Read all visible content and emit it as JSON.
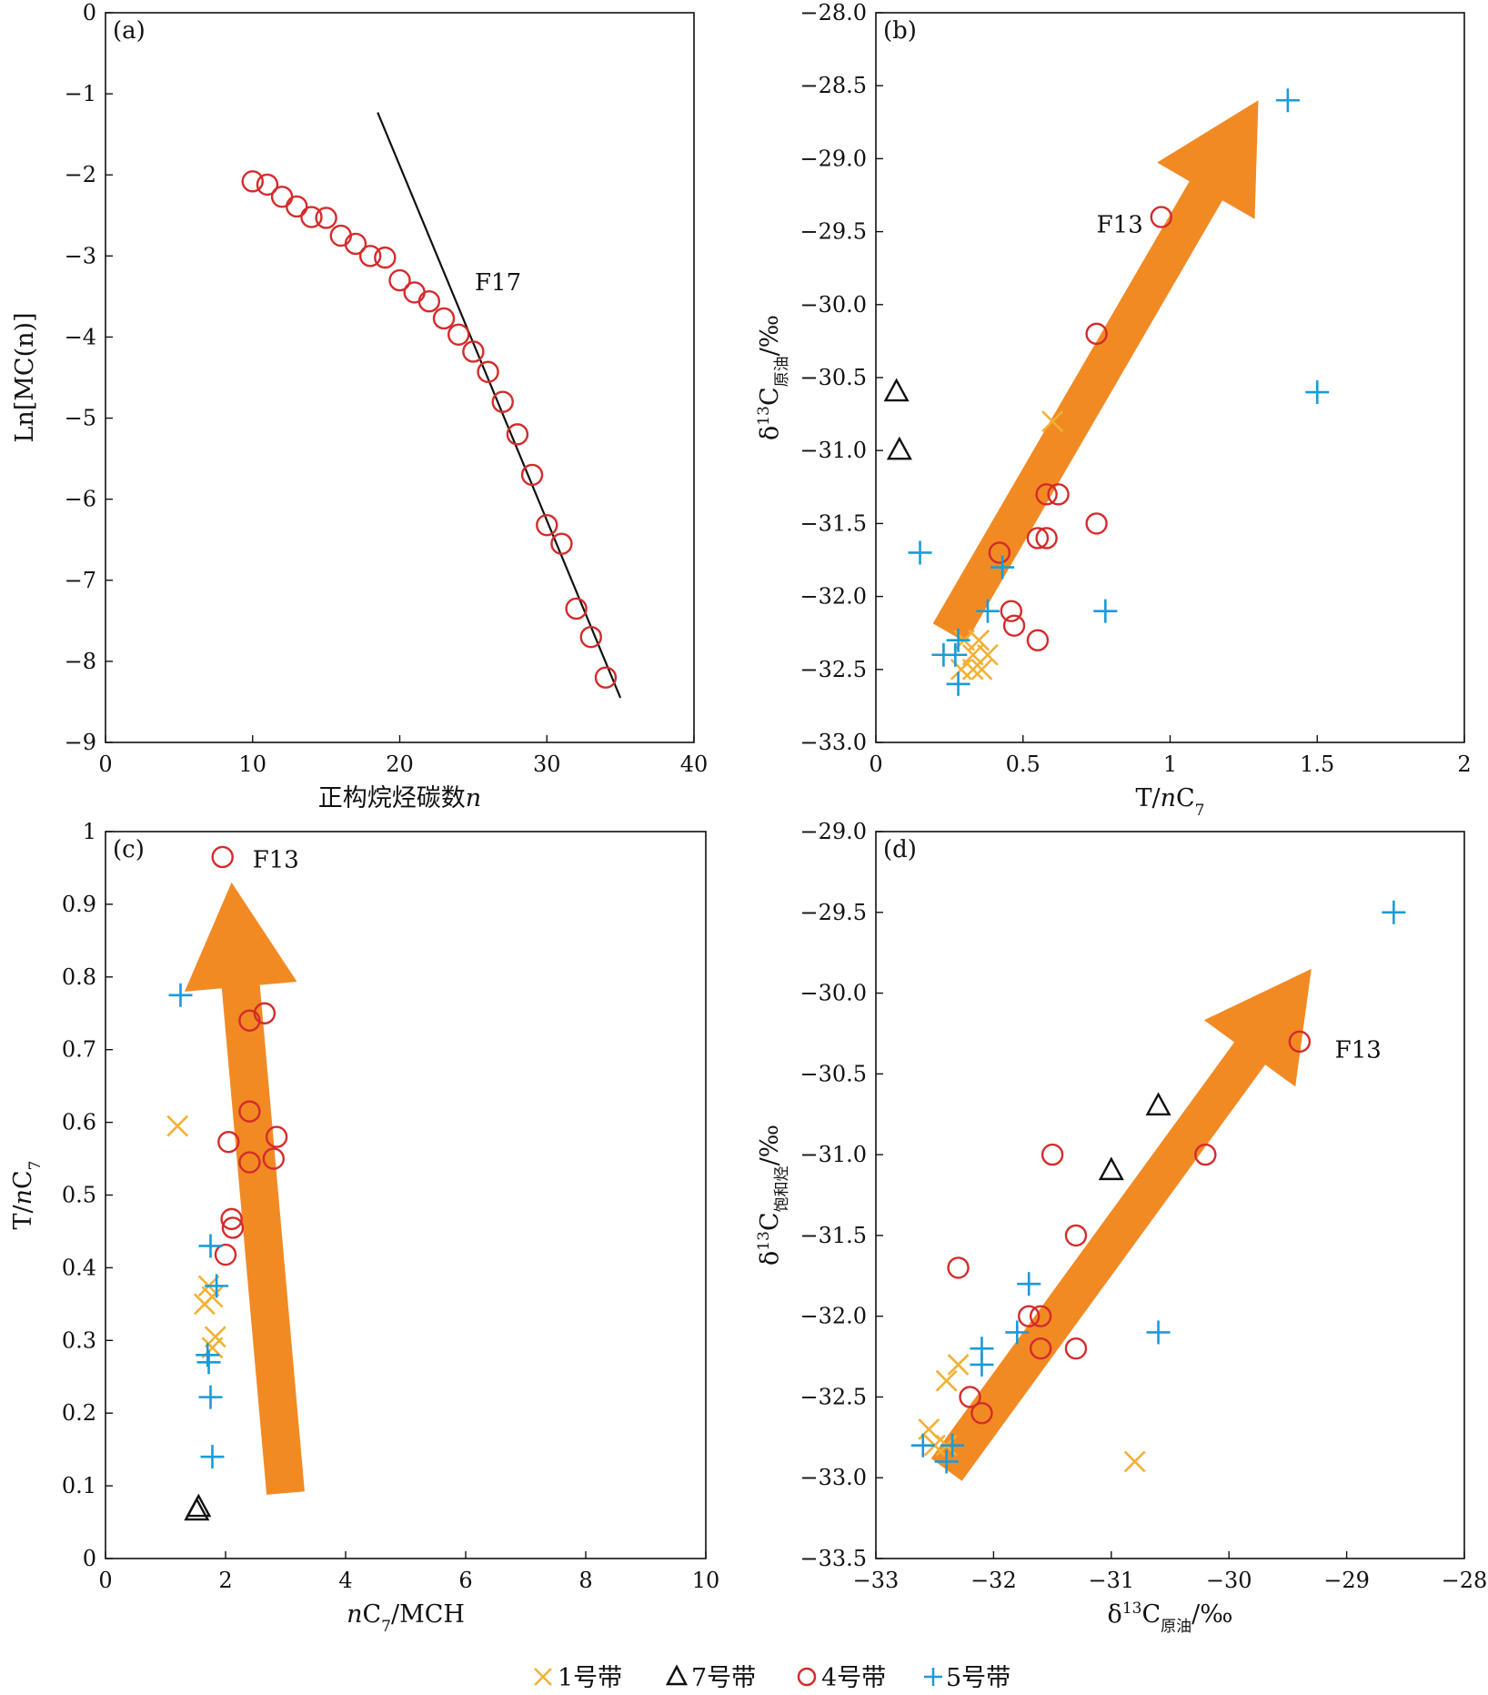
{
  "legend": {
    "items": [
      {
        "key": "zone1",
        "label": "1号带"
      },
      {
        "key": "zone7",
        "label": "7号带"
      },
      {
        "key": "zone4",
        "label": "4号带"
      },
      {
        "key": "zone5",
        "label": "5号带"
      }
    ]
  },
  "colors": {
    "zone1": "#f2b134",
    "zone7": "#111111",
    "zone4": "#d42b2b",
    "zone5": "#1a9bd7",
    "arrow": "#f28a24",
    "line": "#111111"
  },
  "chart_data": [
    {
      "id": "a",
      "type": "scatter",
      "panel_label": "(a)",
      "xlabel_parts": [
        {
          "t": "正构烷烃碳数",
          "style": "normal"
        },
        {
          "t": "n",
          "style": "italic"
        }
      ],
      "ylabel_parts": [
        {
          "t": "Ln[MC(n)]",
          "style": "normal"
        }
      ],
      "xlim": [
        0,
        40
      ],
      "ylim": [
        -9,
        0
      ],
      "xticks": [
        0,
        10,
        20,
        30,
        40
      ],
      "yticks": [
        0,
        -1,
        -2,
        -3,
        -4,
        -5,
        -6,
        -7,
        -8,
        -9
      ],
      "tick_decimals": 0,
      "series": [
        {
          "name": "4号带",
          "marker": "circle",
          "color": "#d42b2b",
          "points": [
            [
              10,
              -2.08
            ],
            [
              11,
              -2.12
            ],
            [
              12,
              -2.27
            ],
            [
              13,
              -2.39
            ],
            [
              14,
              -2.52
            ],
            [
              15,
              -2.53
            ],
            [
              16,
              -2.75
            ],
            [
              17,
              -2.85
            ],
            [
              18,
              -3.0
            ],
            [
              19,
              -3.02
            ],
            [
              20,
              -3.3
            ],
            [
              21,
              -3.45
            ],
            [
              22,
              -3.56
            ],
            [
              23,
              -3.77
            ],
            [
              24,
              -3.97
            ],
            [
              25,
              -4.18
            ],
            [
              26,
              -4.43
            ],
            [
              27,
              -4.8
            ],
            [
              28,
              -5.2
            ],
            [
              29,
              -5.7
            ],
            [
              30,
              -6.32
            ],
            [
              31,
              -6.55
            ],
            [
              32,
              -7.35
            ],
            [
              33,
              -7.7
            ],
            [
              34,
              -8.2
            ]
          ]
        }
      ],
      "lines": [
        {
          "x1": 18.5,
          "y1": -1.23,
          "x2": 35,
          "y2": -8.45
        }
      ],
      "annotations": [
        {
          "text": "F17",
          "x": 25.1,
          "y": -3.32
        }
      ]
    },
    {
      "id": "b",
      "type": "scatter",
      "panel_label": "(b)",
      "xlabel_parts": [
        {
          "t": "T/",
          "style": "normal"
        },
        {
          "t": "n",
          "style": "italic"
        },
        {
          "t": "C",
          "style": "normal"
        },
        {
          "t": "7",
          "style": "sub"
        }
      ],
      "ylabel_parts": [
        {
          "t": "δ",
          "style": "normal"
        },
        {
          "t": "13",
          "style": "sup"
        },
        {
          "t": "C",
          "style": "normal"
        },
        {
          "t": "原油",
          "style": "sub"
        },
        {
          "t": "/‰",
          "style": "normal"
        }
      ],
      "xlim": [
        0,
        2
      ],
      "ylim": [
        -33.0,
        -28.0
      ],
      "xticks": [
        0,
        0.5,
        1,
        1.5,
        2
      ],
      "yticks": [
        -28.0,
        -28.5,
        -29.0,
        -29.5,
        -30.0,
        -30.5,
        -31.0,
        -31.5,
        -32.0,
        -32.5,
        -33.0
      ],
      "tick_decimals": 1,
      "arrow": {
        "from": [
          0.25,
          -32.25
        ],
        "to": [
          1.3,
          -28.6
        ]
      },
      "series": [
        {
          "name": "1号带",
          "marker": "x",
          "color": "#f2b134",
          "points": [
            [
              0.6,
              -30.8
            ],
            [
              0.3,
              -32.3
            ],
            [
              0.33,
              -32.4
            ],
            [
              0.35,
              -32.3
            ],
            [
              0.38,
              -32.4
            ],
            [
              0.29,
              -32.5
            ],
            [
              0.33,
              -32.5
            ],
            [
              0.36,
              -32.5
            ]
          ]
        },
        {
          "name": "7号带",
          "marker": "triangle",
          "color": "#111111",
          "points": [
            [
              0.07,
              -30.6
            ],
            [
              0.08,
              -31.0
            ]
          ]
        },
        {
          "name": "4号带",
          "marker": "circle",
          "color": "#d42b2b",
          "points": [
            [
              0.97,
              -29.4
            ],
            [
              0.75,
              -30.2
            ],
            [
              0.58,
              -31.3
            ],
            [
              0.62,
              -31.3
            ],
            [
              0.75,
              -31.5
            ],
            [
              0.55,
              -31.6
            ],
            [
              0.58,
              -31.6
            ],
            [
              0.42,
              -31.7
            ],
            [
              0.46,
              -32.1
            ],
            [
              0.47,
              -32.2
            ],
            [
              0.55,
              -32.3
            ]
          ]
        },
        {
          "name": "5号带",
          "marker": "plus",
          "color": "#1a9bd7",
          "points": [
            [
              1.4,
              -28.6
            ],
            [
              1.5,
              -30.6
            ],
            [
              0.15,
              -31.7
            ],
            [
              0.43,
              -31.8
            ],
            [
              0.38,
              -32.1
            ],
            [
              0.78,
              -32.1
            ],
            [
              0.28,
              -32.3
            ],
            [
              0.23,
              -32.4
            ],
            [
              0.27,
              -32.4
            ],
            [
              0.28,
              -32.6
            ]
          ]
        }
      ],
      "annotations": [
        {
          "text": "F13",
          "x": 0.75,
          "y": -29.45
        }
      ]
    },
    {
      "id": "c",
      "type": "scatter",
      "panel_label": "(c)",
      "xlabel_parts": [
        {
          "t": "n",
          "style": "italic"
        },
        {
          "t": "C",
          "style": "normal"
        },
        {
          "t": "7",
          "style": "sub"
        },
        {
          "t": "/MCH",
          "style": "normal"
        }
      ],
      "ylabel_parts": [
        {
          "t": "T/",
          "style": "normal"
        },
        {
          "t": "n",
          "style": "italic"
        },
        {
          "t": "C",
          "style": "normal"
        },
        {
          "t": "7",
          "style": "sub"
        }
      ],
      "xlim": [
        0,
        10
      ],
      "ylim": [
        0,
        1
      ],
      "xticks": [
        0,
        2,
        4,
        6,
        8,
        10
      ],
      "yticks": [
        0,
        0.1,
        0.2,
        0.3,
        0.4,
        0.5,
        0.6,
        0.7,
        0.8,
        0.9,
        1
      ],
      "tick_decimals": -1,
      "arrow": {
        "from": [
          3.0,
          0.09
        ],
        "to": [
          2.1,
          0.93
        ]
      },
      "series": [
        {
          "name": "1号带",
          "marker": "x",
          "color": "#f2b134",
          "points": [
            [
              1.2,
              0.595
            ],
            [
              1.72,
              0.375
            ],
            [
              1.78,
              0.36
            ],
            [
              1.65,
              0.35
            ],
            [
              1.83,
              0.305
            ],
            [
              1.78,
              0.29
            ]
          ]
        },
        {
          "name": "7号带",
          "marker": "triangle",
          "color": "#111111",
          "points": [
            [
              1.55,
              0.07
            ],
            [
              1.52,
              0.065
            ]
          ]
        },
        {
          "name": "4号带",
          "marker": "circle",
          "color": "#d42b2b",
          "points": [
            [
              1.95,
              0.965
            ],
            [
              2.65,
              0.75
            ],
            [
              2.4,
              0.74
            ],
            [
              2.4,
              0.615
            ],
            [
              2.85,
              0.58
            ],
            [
              2.05,
              0.573
            ],
            [
              2.8,
              0.55
            ],
            [
              2.4,
              0.545
            ],
            [
              2.1,
              0.467
            ],
            [
              2.12,
              0.455
            ],
            [
              2.0,
              0.418
            ]
          ]
        },
        {
          "name": "5号带",
          "marker": "plus",
          "color": "#1a9bd7",
          "points": [
            [
              1.25,
              0.775
            ],
            [
              1.75,
              0.43
            ],
            [
              1.85,
              0.375
            ],
            [
              1.7,
              0.28
            ],
            [
              1.72,
              0.27
            ],
            [
              1.75,
              0.222
            ],
            [
              1.78,
              0.14
            ]
          ]
        }
      ],
      "annotations": [
        {
          "text": "F13",
          "x": 2.45,
          "y": 0.962
        }
      ]
    },
    {
      "id": "d",
      "type": "scatter",
      "panel_label": "(d)",
      "xlabel_parts": [
        {
          "t": "δ",
          "style": "normal"
        },
        {
          "t": "13",
          "style": "sup"
        },
        {
          "t": "C",
          "style": "normal"
        },
        {
          "t": "原油",
          "style": "sub"
        },
        {
          "t": "/‰",
          "style": "normal"
        }
      ],
      "ylabel_parts": [
        {
          "t": "δ",
          "style": "normal"
        },
        {
          "t": "13",
          "style": "sup"
        },
        {
          "t": "C",
          "style": "normal"
        },
        {
          "t": "饱和烃",
          "style": "sub"
        },
        {
          "t": "/‰",
          "style": "normal"
        }
      ],
      "xlim": [
        -33,
        -28
      ],
      "ylim": [
        -33.5,
        -29.0
      ],
      "xticks": [
        -33,
        -32,
        -31,
        -30,
        -29,
        -28
      ],
      "yticks": [
        -29.0,
        -29.5,
        -30.0,
        -30.5,
        -31.0,
        -31.5,
        -32.0,
        -32.5,
        -33.0,
        -33.5
      ],
      "tick_decimals": 1,
      "xtick_decimals": 0,
      "arrow": {
        "from": [
          -32.4,
          -32.95
        ],
        "to": [
          -29.3,
          -29.85
        ]
      },
      "series": [
        {
          "name": "1号带",
          "marker": "x",
          "color": "#f2b134",
          "points": [
            [
              -32.3,
              -32.3
            ],
            [
              -32.4,
              -32.4
            ],
            [
              -32.55,
              -32.7
            ],
            [
              -32.5,
              -32.8
            ],
            [
              -32.4,
              -32.8
            ],
            [
              -30.8,
              -32.9
            ]
          ]
        },
        {
          "name": "7号带",
          "marker": "triangle",
          "color": "#111111",
          "points": [
            [
              -30.6,
              -30.7
            ],
            [
              -31.0,
              -31.1
            ]
          ]
        },
        {
          "name": "4号带",
          "marker": "circle",
          "color": "#d42b2b",
          "points": [
            [
              -29.4,
              -30.3
            ],
            [
              -30.2,
              -31.0
            ],
            [
              -31.5,
              -31.0
            ],
            [
              -31.3,
              -31.5
            ],
            [
              -32.3,
              -31.7
            ],
            [
              -31.7,
              -32.0
            ],
            [
              -31.6,
              -32.0
            ],
            [
              -31.6,
              -32.2
            ],
            [
              -31.3,
              -32.2
            ],
            [
              -32.2,
              -32.5
            ],
            [
              -32.1,
              -32.6
            ]
          ]
        },
        {
          "name": "5号带",
          "marker": "plus",
          "color": "#1a9bd7",
          "points": [
            [
              -28.6,
              -29.5
            ],
            [
              -31.7,
              -31.8
            ],
            [
              -31.8,
              -32.1
            ],
            [
              -30.6,
              -32.1
            ],
            [
              -32.1,
              -32.2
            ],
            [
              -32.1,
              -32.3
            ],
            [
              -32.6,
              -32.8
            ],
            [
              -32.35,
              -32.8
            ],
            [
              -32.4,
              -32.9
            ]
          ]
        }
      ],
      "annotations": [
        {
          "text": "F13",
          "x": -29.1,
          "y": -30.35
        }
      ]
    }
  ]
}
